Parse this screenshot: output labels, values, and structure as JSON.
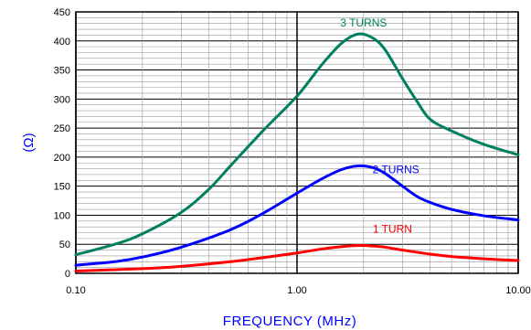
{
  "chart_data": {
    "type": "line",
    "title": "",
    "xlabel": "FREQUENCY (MHz)",
    "ylabel": "(Ω)",
    "xscale": "log",
    "xlim": [
      0.1,
      10
    ],
    "ylim": [
      0,
      450
    ],
    "grid": true,
    "x_ticks": [
      "0.10",
      "1.00",
      "10.00"
    ],
    "y_ticks": [
      "0",
      "50",
      "100",
      "150",
      "200",
      "250",
      "300",
      "350",
      "400",
      "450"
    ],
    "colors": {
      "axis_label": "#0000ff",
      "grid": "#999999",
      "major_grid": "#000000"
    },
    "series": [
      {
        "name": "1 TURN",
        "color": "#ff0000",
        "x": [
          0.1,
          0.2,
          0.3,
          0.5,
          0.7,
          1.0,
          1.3,
          1.6,
          1.9,
          2.2,
          2.5,
          3.0,
          4.0,
          5.0,
          7.0,
          10.0
        ],
        "y": [
          4,
          8,
          12,
          20,
          27,
          35,
          42,
          46,
          48,
          47,
          45,
          40,
          33,
          29,
          25,
          22
        ]
      },
      {
        "name": "2 TURNS",
        "color": "#0000ff",
        "x": [
          0.1,
          0.15,
          0.2,
          0.3,
          0.5,
          0.7,
          1.0,
          1.3,
          1.6,
          1.9,
          2.2,
          2.5,
          3.0,
          3.5,
          4.0,
          5.0,
          7.0,
          10.0
        ],
        "y": [
          14,
          20,
          28,
          45,
          75,
          103,
          138,
          163,
          179,
          185,
          182,
          172,
          150,
          132,
          122,
          110,
          99,
          92
        ]
      },
      {
        "name": "3 TURNS",
        "color": "#008060",
        "x": [
          0.1,
          0.15,
          0.2,
          0.3,
          0.4,
          0.5,
          0.7,
          1.0,
          1.3,
          1.6,
          1.9,
          2.2,
          2.5,
          3.0,
          3.5,
          4.0,
          5.0,
          7.0,
          10.0
        ],
        "y": [
          32,
          50,
          68,
          105,
          145,
          185,
          245,
          305,
          360,
          397,
          412,
          405,
          385,
          335,
          295,
          265,
          245,
          222,
          204
        ]
      }
    ],
    "annotations": [
      {
        "text": "3 TURNS",
        "x": 2.0,
        "y": 425,
        "color": "#008060"
      },
      {
        "text": "2 TURNS",
        "x": 2.8,
        "y": 172,
        "color": "#0000ff"
      },
      {
        "text": "1 TURN",
        "x": 2.7,
        "y": 70,
        "color": "#ff0000"
      }
    ]
  }
}
